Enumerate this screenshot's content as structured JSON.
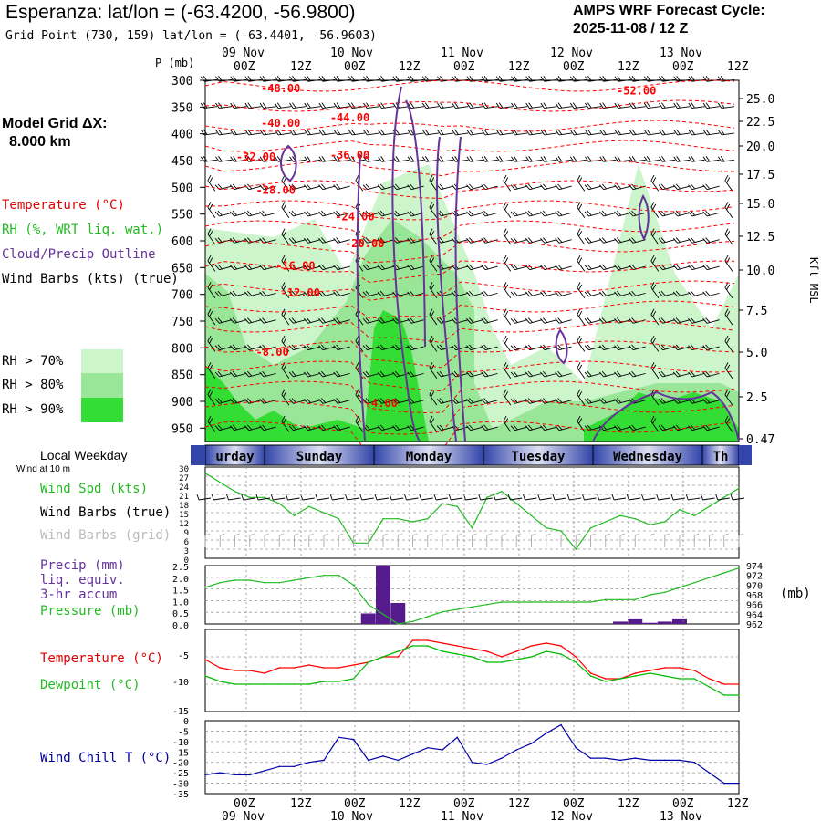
{
  "header": {
    "title": "Esperanza:  lat/lon = (-63.4200, -56.9800)",
    "subtitle": "Grid Point (730, 159) lat/lon = (-63.4401, -56.9603)",
    "cycle_line1": "AMPS WRF Forecast Cycle:",
    "cycle_line2": "2025-11-08 / 12  Z"
  },
  "model_grid": {
    "label": "Model Grid ΔX:",
    "value": "8.000 km"
  },
  "legend": {
    "temperature": "Temperature (°C)",
    "rh": "RH (%, WRT liq. wat.)",
    "cloud": "Cloud/Precip Outline",
    "wind": "Wind Barbs (kts) (true)",
    "rh70": "RH > 70%",
    "rh80": "RH > 80%",
    "rh90": "RH > 90%",
    "colors": {
      "rh70": "#ccf5cc",
      "rh80": "#99e699",
      "rh90": "#33dd33",
      "temp": "#ff0000",
      "cloud": "#663399",
      "wind_chill": "#0000aa",
      "dewpoint": "#00bb00"
    }
  },
  "weekday": {
    "title": "Local Weekday",
    "wind_note": "Wind at 10 m",
    "days": [
      {
        "label": "urday"
      },
      {
        "label": "Sunday"
      },
      {
        "label": "Monday"
      },
      {
        "label": "Tuesday"
      },
      {
        "label": "Wednesday"
      },
      {
        "label": "Th"
      }
    ]
  },
  "side_labels": {
    "wind_spd": "Wind Spd (kts)",
    "wind_barbs_true": "Wind Barbs (true)",
    "wind_barbs_grid": "Wind Barbs (grid)",
    "precip1": "Precip (mm)",
    "precip2": "liq. equiv.",
    "precip3": "3-hr accum",
    "pressure": "Pressure (mb)",
    "pressure_unit": "(mb)",
    "temperature": "Temperature (°C)",
    "dewpoint": "Dewpoint (°C)",
    "wind_chill": "Wind Chill T (°C)",
    "height_unit": "Kft MSL",
    "p_axis_title": "P (mb)"
  },
  "time_axis": {
    "ticks": [
      "00Z",
      "12Z",
      "00Z",
      "12Z",
      "00Z",
      "12Z",
      "00Z",
      "12Z",
      "00Z",
      "12Z"
    ],
    "top_dates": [
      "09 Nov",
      "10 Nov",
      "11 Nov",
      "12 Nov",
      "13 Nov"
    ],
    "bottom_ticks": [
      "00Z",
      "12Z",
      "00Z",
      "12Z",
      "00Z",
      "12Z",
      "00Z",
      "12Z",
      "00Z",
      "12Z"
    ],
    "bottom_dates": [
      "09 Nov",
      "10 Nov",
      "11 Nov",
      "12 Nov",
      "13 Nov"
    ]
  },
  "chart_data": [
    {
      "type": "heatmap",
      "name": "cross-section",
      "p_levels": [
        300,
        350,
        400,
        450,
        500,
        550,
        600,
        650,
        700,
        750,
        800,
        850,
        900,
        950
      ],
      "height_kft": [
        25.0,
        22.5,
        20.0,
        17.5,
        15.0,
        12.5,
        10.0,
        7.5,
        5.0,
        2.5,
        0.47
      ],
      "height_labels": [
        "25.0",
        "22.5",
        "20.0",
        "17.5",
        "15.0",
        "12.5",
        "10.0",
        "7.5",
        "5.0",
        "2.5",
        "0.47"
      ],
      "contour_labels": [
        {
          "text": "-48.00",
          "h": 12,
          "p": 315
        },
        {
          "text": "-52.00",
          "h": 84,
          "p": 320
        },
        {
          "text": "-40.00",
          "h": 12,
          "p": 380
        },
        {
          "text": "-44.00",
          "h": 26,
          "p": 370
        },
        {
          "text": "-32.00",
          "h": 7,
          "p": 443
        },
        {
          "text": "-36.00",
          "h": 26,
          "p": 440
        },
        {
          "text": "-28.00",
          "h": 11,
          "p": 505
        },
        {
          "text": "-24.00",
          "h": 27,
          "p": 555
        },
        {
          "text": "-20.00",
          "h": 29,
          "p": 605
        },
        {
          "text": "-16.00",
          "h": 15,
          "p": 647
        },
        {
          "text": "-12.00",
          "h": 16,
          "p": 697
        },
        {
          "text": "-8.00",
          "h": 11,
          "p": 808
        },
        {
          "text": "-4.00",
          "h": 33,
          "p": 903
        }
      ]
    },
    {
      "type": "line",
      "name": "Wind Spd (kts)",
      "y_ticks": [
        "30",
        "27",
        "24",
        "21",
        "18",
        "15",
        "12",
        "9",
        "6",
        "3",
        "0"
      ],
      "x_hours": [
        0,
        3,
        6,
        9,
        12,
        15,
        18,
        21,
        24,
        27,
        30,
        33,
        36,
        39,
        42,
        45,
        48,
        51,
        54,
        57,
        60,
        63,
        66,
        69,
        72,
        75,
        78,
        81,
        84,
        87,
        90,
        93,
        96,
        99,
        102,
        105,
        108
      ],
      "values": [
        28,
        25,
        22,
        20,
        20,
        18,
        14,
        17,
        15,
        13,
        5,
        5,
        13,
        13,
        12,
        13,
        18,
        17,
        10,
        20,
        22,
        18,
        14,
        10,
        9,
        3,
        10,
        12,
        14,
        13,
        11,
        12,
        16,
        14,
        17,
        20,
        23
      ]
    },
    {
      "type": "bar",
      "name": "Precip (mm)",
      "y_ticks": [
        "2.5",
        "2.0",
        "1.5",
        "1.0",
        "0.5",
        "0.0"
      ],
      "x_hours": [
        33,
        36,
        39,
        84,
        87,
        90,
        93,
        96
      ],
      "values": [
        0.45,
        2.5,
        0.9,
        0.1,
        0.2,
        0.05,
        0.1,
        0.2
      ]
    },
    {
      "type": "line",
      "name": "Pressure (mb)",
      "y_ticks": [
        "974",
        "972",
        "970",
        "968",
        "966",
        "964",
        "962"
      ],
      "x_hours": [
        0,
        3,
        6,
        9,
        12,
        15,
        18,
        21,
        24,
        27,
        30,
        33,
        36,
        39,
        42,
        45,
        48,
        51,
        54,
        57,
        60,
        63,
        66,
        69,
        72,
        75,
        78,
        81,
        84,
        87,
        90,
        93,
        96,
        99,
        102,
        105,
        108
      ],
      "values": [
        969.5,
        970.5,
        971,
        971,
        970.5,
        970.5,
        971,
        971.5,
        972,
        972,
        970,
        966,
        964,
        962,
        962.5,
        963.5,
        964.5,
        965,
        965.5,
        966,
        966.5,
        966.5,
        966.5,
        966.5,
        966.5,
        966.5,
        966.5,
        967,
        967,
        967,
        968,
        968.5,
        969.5,
        970.5,
        971.5,
        972.5,
        973.5
      ]
    },
    {
      "type": "line",
      "name": "Temperature (°C)",
      "y_ticks": [
        "-5",
        "-10",
        "-15"
      ],
      "series": [
        {
          "name": "Temperature (°C)",
          "x_hours": [
            0,
            3,
            6,
            9,
            12,
            15,
            18,
            21,
            24,
            27,
            30,
            33,
            36,
            39,
            42,
            45,
            48,
            51,
            54,
            57,
            60,
            63,
            66,
            69,
            72,
            75,
            78,
            81,
            84,
            87,
            90,
            93,
            96,
            99,
            102,
            105,
            108
          ],
          "values": [
            -5.5,
            -7,
            -7.5,
            -7.5,
            -8,
            -7,
            -7,
            -6.5,
            -7,
            -7,
            -6.5,
            -6,
            -5,
            -5,
            -2,
            -2,
            -2.5,
            -3,
            -3.5,
            -4,
            -5,
            -4,
            -3,
            -2.5,
            -3,
            -5,
            -8,
            -9,
            -9,
            -8,
            -7.5,
            -7,
            -7,
            -7.5,
            -9,
            -10,
            -10
          ]
        },
        {
          "name": "Dewpoint (°C)",
          "x_hours": [
            0,
            3,
            6,
            9,
            12,
            15,
            18,
            21,
            24,
            27,
            30,
            33,
            36,
            39,
            42,
            45,
            48,
            51,
            54,
            57,
            60,
            63,
            66,
            69,
            72,
            75,
            78,
            81,
            84,
            87,
            90,
            93,
            96,
            99,
            102,
            105,
            108
          ],
          "values": [
            -8.5,
            -9.5,
            -10,
            -10,
            -10,
            -10,
            -10,
            -10,
            -9.5,
            -9.5,
            -9,
            -6,
            -5,
            -4,
            -3,
            -3,
            -4,
            -4.5,
            -5,
            -6,
            -6,
            -5.5,
            -5,
            -4,
            -4.5,
            -6,
            -8.5,
            -9.5,
            -9,
            -8.5,
            -8,
            -8.5,
            -9,
            -9,
            -10.5,
            -12,
            -12
          ]
        }
      ]
    },
    {
      "type": "line",
      "name": "Wind Chill T (°C)",
      "y_ticks": [
        "0",
        "-5",
        "-10",
        "-15",
        "-20",
        "-25",
        "-30",
        "-35"
      ],
      "x_hours": [
        0,
        3,
        6,
        9,
        12,
        15,
        18,
        21,
        24,
        27,
        30,
        33,
        36,
        39,
        42,
        45,
        48,
        51,
        54,
        57,
        60,
        63,
        66,
        69,
        72,
        75,
        78,
        81,
        84,
        87,
        90,
        93,
        96,
        99,
        102,
        105,
        108
      ],
      "values": [
        -26,
        -25,
        -26,
        -26,
        -24,
        -22,
        -22,
        -20,
        -19,
        -8,
        -9,
        -19,
        -17,
        -19,
        -16,
        -13,
        -14,
        -8,
        -20,
        -21,
        -18,
        -14,
        -11,
        -6,
        -2,
        -13,
        -18,
        -18,
        -19,
        -18,
        -19,
        -19,
        -19,
        -20,
        -25,
        -30,
        -30
      ]
    }
  ]
}
